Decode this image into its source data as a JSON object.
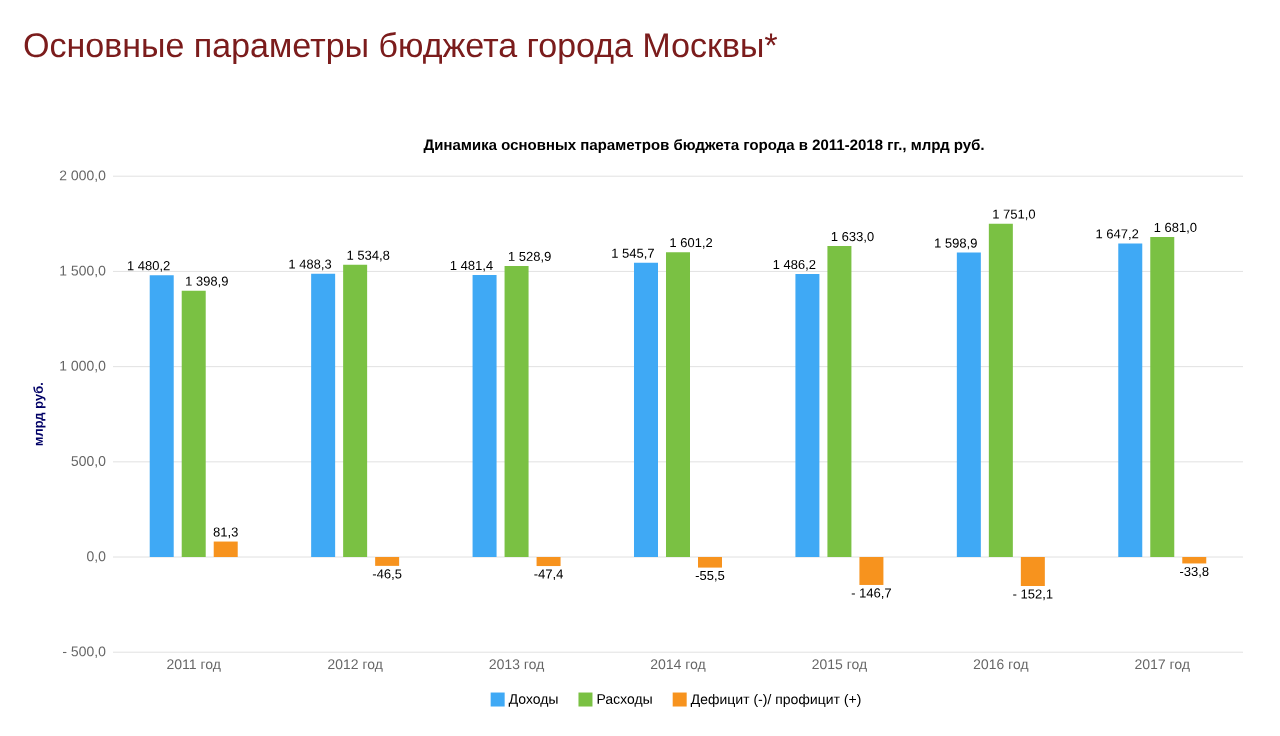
{
  "chart_data": {
    "type": "bar",
    "title": "Основные параметры бюджета города Москвы*",
    "subtitle": "Динамика основных параметров бюджета города в 2011-2018 гг., млрд руб.",
    "ylabel": "млрд руб.",
    "categories": [
      "2011 год",
      "2012 год",
      "2013 год",
      "2014 год",
      "2015 год",
      "2016 год",
      "2017 год"
    ],
    "series": [
      {
        "name": "Доходы",
        "color": "#3fa9f5",
        "values": [
          1480.2,
          1488.3,
          1481.4,
          1545.7,
          1486.2,
          1598.9,
          1647.2
        ],
        "value_labels": [
          "1 480,2",
          "1 488,3",
          "1 481,4",
          "1 545,7",
          "1 486,2",
          "1 598,9",
          "1 647,2"
        ]
      },
      {
        "name": "Расходы",
        "color": "#7ac143",
        "values": [
          1398.9,
          1534.8,
          1528.9,
          1601.2,
          1633.0,
          1751.0,
          1681.0
        ],
        "value_labels": [
          "1 398,9",
          "1 534,8",
          "1 528,9",
          "1 601,2",
          "1 633,0",
          "1 751,0",
          "1 681,0"
        ]
      },
      {
        "name": "Дефицит (-)/ профицит (+)",
        "color": "#f7931e",
        "values": [
          81.3,
          -46.5,
          -47.4,
          -55.5,
          -146.7,
          -152.1,
          -33.8
        ],
        "value_labels": [
          "81,3",
          "-46,5",
          "-47,4",
          "-55,5",
          "- 146,7",
          "- 152,1",
          "-33,8"
        ]
      }
    ],
    "ylim": [
      -500,
      2000
    ],
    "yticks": [
      {
        "value": -500,
        "label": "- 500,0"
      },
      {
        "value": 0,
        "label": "0,0"
      },
      {
        "value": 500,
        "label": "500,0"
      },
      {
        "value": 1000,
        "label": "1 000,0"
      },
      {
        "value": 1500,
        "label": "1 500,0"
      },
      {
        "value": 2000,
        "label": "2 000,0"
      }
    ],
    "grid": "y",
    "legend": "bottom"
  }
}
